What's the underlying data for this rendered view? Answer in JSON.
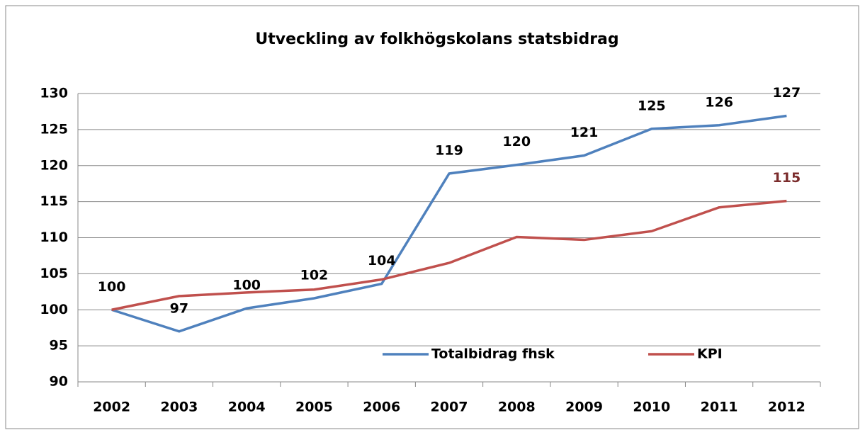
{
  "chart_data": {
    "type": "line",
    "title": "Utveckling av folkhögskolans statsbidrag",
    "categories": [
      "2002",
      "2003",
      "2004",
      "2005",
      "2006",
      "2007",
      "2008",
      "2009",
      "2010",
      "2011",
      "2012"
    ],
    "series": [
      {
        "name": "Totalbidrag fhsk",
        "color": "#4f81bd",
        "values": [
          100,
          97.0,
          100.2,
          101.6,
          103.6,
          118.9,
          120.1,
          121.4,
          125.1,
          125.6,
          126.9
        ],
        "value_labels": [
          "100",
          "97",
          "100",
          "102",
          "104",
          "119",
          "120",
          "121",
          "125",
          "126",
          "127"
        ],
        "label_color": "#000000"
      },
      {
        "name": "KPI",
        "color": "#c0504d",
        "values": [
          100,
          101.9,
          102.4,
          102.8,
          104.2,
          106.5,
          110.1,
          109.7,
          110.9,
          114.2,
          115.1
        ],
        "value_labels": [
          null,
          null,
          null,
          null,
          null,
          null,
          null,
          null,
          null,
          null,
          "115"
        ],
        "label_color": "#7b2c2c"
      }
    ],
    "ylim": [
      90,
      130
    ],
    "yticks": [
      90,
      95,
      100,
      105,
      110,
      115,
      120,
      125,
      130
    ],
    "grid": true
  }
}
